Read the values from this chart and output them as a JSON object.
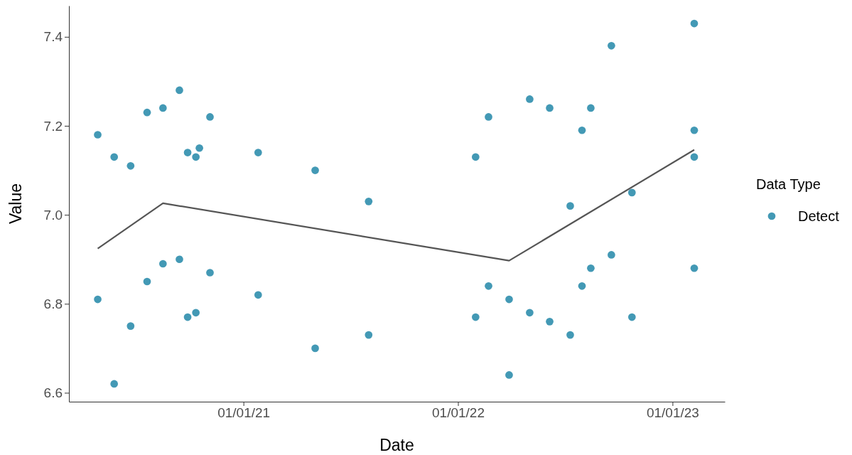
{
  "chart_data": {
    "type": "scatter",
    "xlabel": "Date",
    "ylabel": "Value",
    "legend_title": "Data Type",
    "legend": "right",
    "grid": false,
    "marker": "circle",
    "xlim": [
      "2020-03-10",
      "2023-03-31"
    ],
    "ylim": [
      6.58,
      7.47
    ],
    "xticks": [
      {
        "value": "2021-01-01",
        "label": "01/01/21"
      },
      {
        "value": "2022-01-01",
        "label": "01/01/22"
      },
      {
        "value": "2023-01-01",
        "label": "01/01/23"
      }
    ],
    "yticks": [
      {
        "value": 6.6,
        "label": "6.6"
      },
      {
        "value": 6.8,
        "label": "6.8"
      },
      {
        "value": 7.0,
        "label": "7.0"
      },
      {
        "value": 7.2,
        "label": "7.2"
      },
      {
        "value": 7.4,
        "label": "7.4"
      }
    ],
    "series": [
      {
        "name": "Detect",
        "color": "#4399b5",
        "x": [
          "2020-04-28",
          "2020-04-28",
          "2020-05-26",
          "2020-05-26",
          "2020-06-23",
          "2020-06-23",
          "2020-07-21",
          "2020-07-21",
          "2020-08-17",
          "2020-08-17",
          "2020-09-14",
          "2020-09-14",
          "2020-09-28",
          "2020-09-28",
          "2020-10-12",
          "2020-10-12",
          "2020-10-18",
          "2020-11-05",
          "2020-11-05",
          "2021-01-26",
          "2021-01-26",
          "2021-05-03",
          "2021-05-03",
          "2021-08-02",
          "2021-08-02",
          "2022-01-31",
          "2022-01-31",
          "2022-02-22",
          "2022-02-22",
          "2022-03-29",
          "2022-03-29",
          "2022-05-03",
          "2022-05-03",
          "2022-06-06",
          "2022-06-06",
          "2022-07-11",
          "2022-07-11",
          "2022-07-31",
          "2022-07-31",
          "2022-08-15",
          "2022-08-15",
          "2022-09-19",
          "2022-09-19",
          "2022-10-24",
          "2022-10-24",
          "2023-02-07",
          "2023-02-07",
          "2023-02-07",
          "2023-02-07"
        ],
        "values": [
          7.18,
          6.81,
          7.13,
          6.62,
          7.11,
          6.75,
          7.23,
          6.85,
          7.24,
          6.89,
          7.28,
          6.9,
          7.14,
          6.77,
          7.13,
          6.78,
          7.15,
          7.22,
          6.87,
          7.14,
          6.82,
          7.1,
          6.7,
          7.03,
          6.73,
          7.13,
          6.77,
          7.22,
          6.84,
          6.81,
          6.64,
          7.26,
          6.78,
          7.24,
          6.76,
          7.02,
          6.73,
          7.19,
          6.84,
          7.24,
          6.88,
          7.38,
          6.91,
          7.05,
          6.77,
          7.43,
          7.19,
          7.13,
          6.88
        ]
      },
      {
        "type": "line",
        "marker": "none",
        "color": "#555555",
        "x": [
          "2020-04-28",
          "2020-08-17",
          "2022-03-29",
          "2023-02-07"
        ],
        "values": [
          6.924,
          7.026,
          6.897,
          7.146
        ]
      }
    ]
  }
}
